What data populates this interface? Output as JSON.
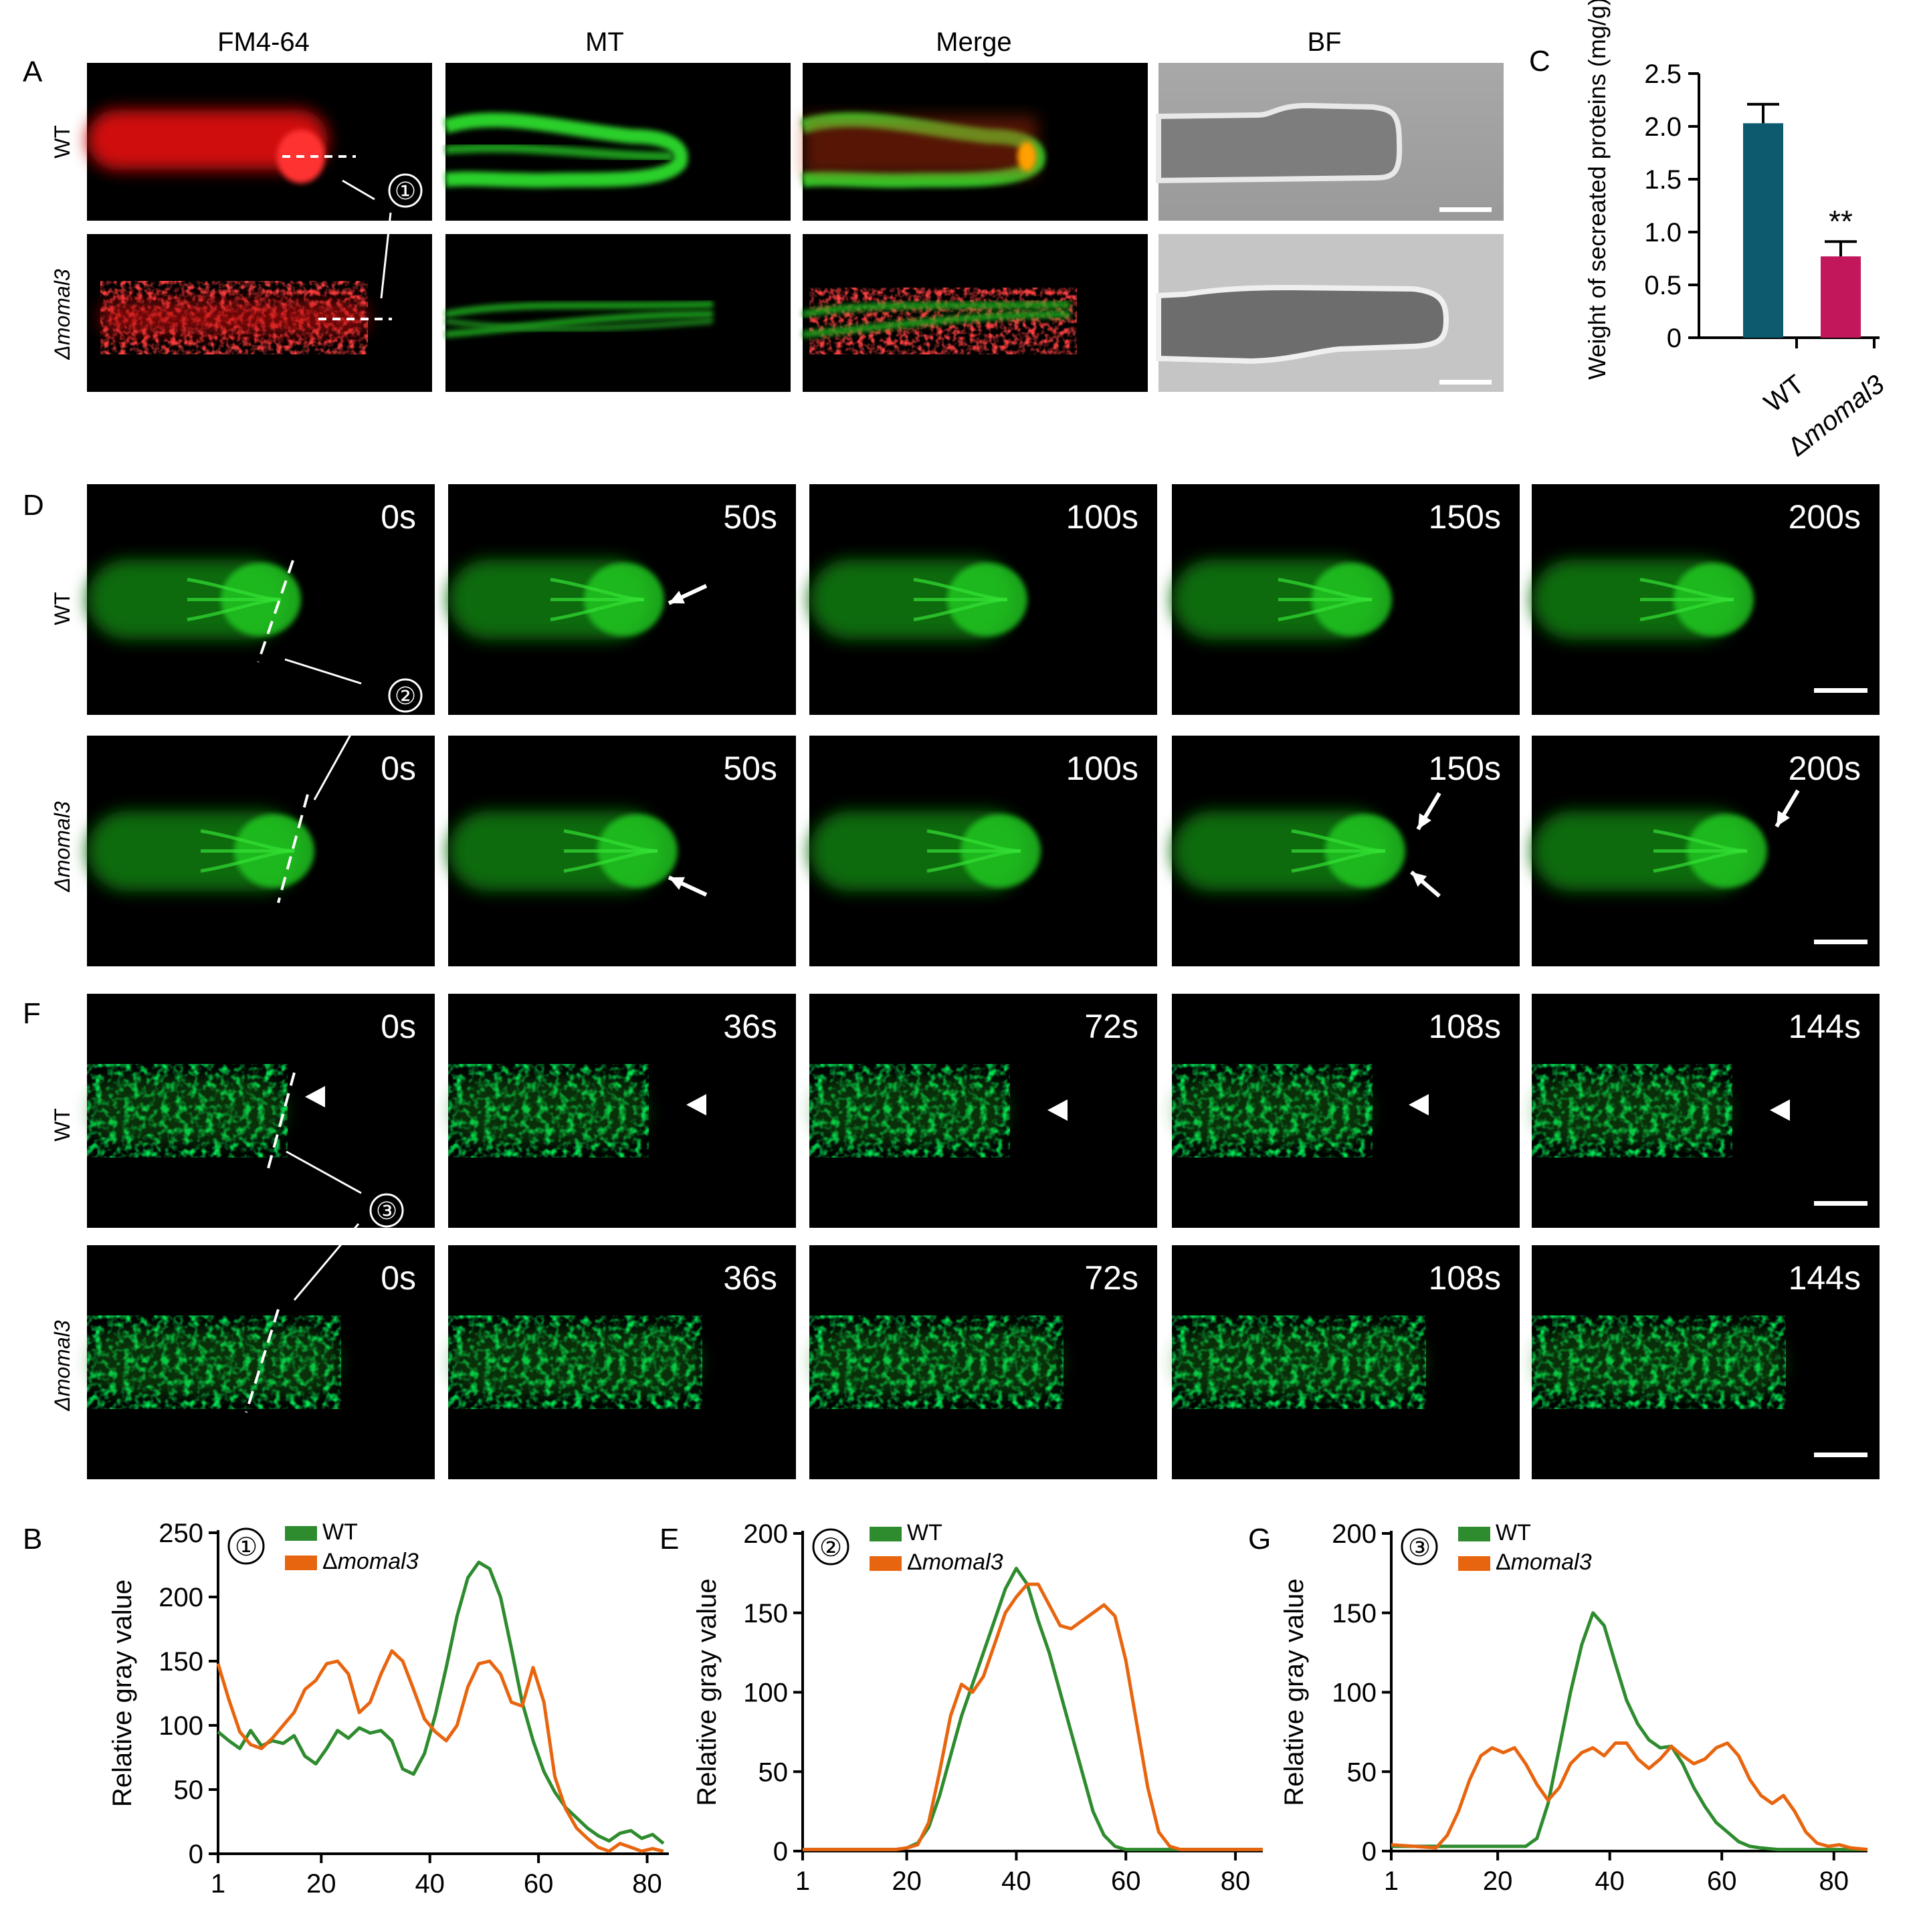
{
  "panel_letters": {
    "A": "A",
    "B": "B",
    "C": "C",
    "D": "D",
    "E": "E",
    "F": "F",
    "G": "G"
  },
  "panel_a": {
    "column_headers": [
      "FM4-64",
      "MT",
      "Merge",
      "BF"
    ],
    "row_labels": [
      "WT",
      "Δmomal3"
    ],
    "line_marker": "①"
  },
  "panel_d": {
    "time_labels": [
      "0s",
      "50s",
      "100s",
      "150s",
      "200s"
    ],
    "row_labels": [
      "WT",
      "Δmomal3"
    ],
    "line_marker": "②"
  },
  "panel_f": {
    "time_labels": [
      "0s",
      "36s",
      "72s",
      "108s",
      "144s"
    ],
    "row_labels": [
      "WT",
      "Δmomal3"
    ],
    "line_marker": "③"
  },
  "colors": {
    "wt": "#2e8b2e",
    "mutant": "#e8650f",
    "bar_wt": "#0d5a6e",
    "bar_mutant": "#c2185b",
    "fm4_red": "#e01010",
    "gfp_green": "#22cc22"
  },
  "chart_data": [
    {
      "id": "C",
      "type": "bar",
      "ylabel": "Weight of secreated proteins (mg/g)",
      "ylim": [
        0,
        2.5
      ],
      "yticks": [
        "0",
        "0.5",
        "1.0",
        "1.5",
        "2.0",
        "2.5"
      ],
      "categories": [
        "WT",
        "Δmomal3"
      ],
      "values": [
        2.03,
        0.77
      ],
      "errors": [
        0.18,
        0.14
      ],
      "annotation": "**"
    },
    {
      "id": "B",
      "type": "line",
      "marker": "①",
      "ylabel": "Relative gray value",
      "ylim": [
        0,
        250
      ],
      "yticks": [
        "0",
        "50",
        "100",
        "150",
        "200",
        "250"
      ],
      "xlim": [
        1,
        84
      ],
      "xticks": [
        "1",
        "20",
        "40",
        "60",
        "80"
      ],
      "series": [
        {
          "name": "WT",
          "x": [
            1,
            3,
            5,
            7,
            9,
            11,
            13,
            15,
            17,
            19,
            21,
            23,
            25,
            27,
            29,
            31,
            33,
            35,
            37,
            39,
            41,
            43,
            45,
            47,
            49,
            51,
            53,
            55,
            57,
            59,
            61,
            63,
            65,
            67,
            69,
            71,
            73,
            75,
            77,
            79,
            81,
            83
          ],
          "y": [
            95,
            88,
            82,
            96,
            84,
            88,
            86,
            92,
            76,
            70,
            82,
            96,
            90,
            98,
            94,
            96,
            88,
            66,
            62,
            78,
            108,
            145,
            185,
            215,
            227,
            222,
            200,
            160,
            118,
            88,
            64,
            48,
            36,
            28,
            20,
            14,
            10,
            16,
            18,
            12,
            15,
            8
          ]
        },
        {
          "name": "Δmomal3",
          "x": [
            1,
            3,
            5,
            7,
            9,
            11,
            13,
            15,
            17,
            19,
            21,
            23,
            25,
            27,
            29,
            31,
            33,
            35,
            37,
            39,
            41,
            43,
            45,
            47,
            49,
            51,
            53,
            55,
            57,
            59,
            61,
            63,
            65,
            67,
            69,
            71,
            73,
            75,
            77,
            79,
            81,
            83
          ],
          "y": [
            148,
            120,
            95,
            85,
            82,
            90,
            100,
            110,
            128,
            135,
            148,
            150,
            140,
            110,
            118,
            140,
            158,
            150,
            128,
            105,
            95,
            88,
            100,
            130,
            148,
            150,
            140,
            118,
            115,
            145,
            118,
            60,
            35,
            20,
            12,
            5,
            2,
            8,
            5,
            2,
            4,
            2
          ]
        }
      ]
    },
    {
      "id": "E",
      "type": "line",
      "marker": "②",
      "ylabel": "Relative gray value",
      "ylim": [
        0,
        200
      ],
      "yticks": [
        "0",
        "50",
        "100",
        "150",
        "200"
      ],
      "xlim": [
        1,
        85
      ],
      "xticks": [
        "1",
        "20",
        "40",
        "60",
        "80"
      ],
      "series": [
        {
          "name": "WT",
          "x": [
            1,
            10,
            18,
            20,
            22,
            24,
            26,
            28,
            30,
            32,
            34,
            36,
            38,
            40,
            42,
            44,
            46,
            48,
            50,
            52,
            54,
            56,
            58,
            60,
            70,
            85
          ],
          "y": [
            1,
            1,
            1,
            2,
            5,
            15,
            35,
            60,
            85,
            105,
            125,
            145,
            165,
            178,
            168,
            145,
            125,
            100,
            75,
            50,
            25,
            10,
            3,
            1,
            1,
            1
          ]
        },
        {
          "name": "Δmomal3",
          "x": [
            1,
            10,
            18,
            20,
            22,
            24,
            26,
            28,
            30,
            32,
            34,
            36,
            38,
            40,
            42,
            44,
            46,
            48,
            50,
            52,
            54,
            56,
            58,
            60,
            62,
            64,
            66,
            68,
            70,
            85
          ],
          "y": [
            1,
            1,
            1,
            2,
            4,
            18,
            50,
            85,
            105,
            100,
            110,
            130,
            150,
            160,
            168,
            168,
            155,
            142,
            140,
            145,
            150,
            155,
            148,
            120,
            80,
            40,
            12,
            3,
            1,
            1
          ]
        }
      ]
    },
    {
      "id": "G",
      "type": "line",
      "marker": "③",
      "ylabel": "Relative gray value",
      "ylim": [
        0,
        200
      ],
      "yticks": [
        "0",
        "50",
        "100",
        "150",
        "200"
      ],
      "xlim": [
        1,
        86
      ],
      "xticks": [
        "1",
        "20",
        "40",
        "60",
        "80"
      ],
      "series": [
        {
          "name": "WT",
          "x": [
            1,
            10,
            20,
            25,
            27,
            29,
            31,
            33,
            35,
            37,
            39,
            41,
            43,
            45,
            47,
            49,
            51,
            53,
            55,
            57,
            59,
            61,
            63,
            65,
            67,
            70,
            80,
            86
          ],
          "y": [
            3,
            3,
            3,
            3,
            8,
            30,
            65,
            100,
            130,
            150,
            142,
            118,
            95,
            80,
            70,
            65,
            66,
            55,
            40,
            28,
            18,
            12,
            6,
            3,
            2,
            1,
            1,
            1
          ]
        },
        {
          "name": "Δmomal3",
          "x": [
            1,
            5,
            9,
            11,
            13,
            15,
            17,
            19,
            21,
            23,
            25,
            27,
            29,
            31,
            33,
            35,
            37,
            39,
            41,
            43,
            45,
            47,
            49,
            51,
            53,
            55,
            57,
            59,
            61,
            63,
            65,
            67,
            69,
            71,
            73,
            75,
            77,
            79,
            81,
            83,
            86
          ],
          "y": [
            4,
            3,
            2,
            10,
            25,
            45,
            60,
            65,
            62,
            65,
            55,
            42,
            32,
            40,
            55,
            62,
            65,
            60,
            68,
            68,
            58,
            52,
            58,
            66,
            60,
            55,
            58,
            65,
            68,
            60,
            45,
            35,
            30,
            35,
            25,
            12,
            5,
            3,
            4,
            2,
            1
          ]
        }
      ]
    }
  ]
}
